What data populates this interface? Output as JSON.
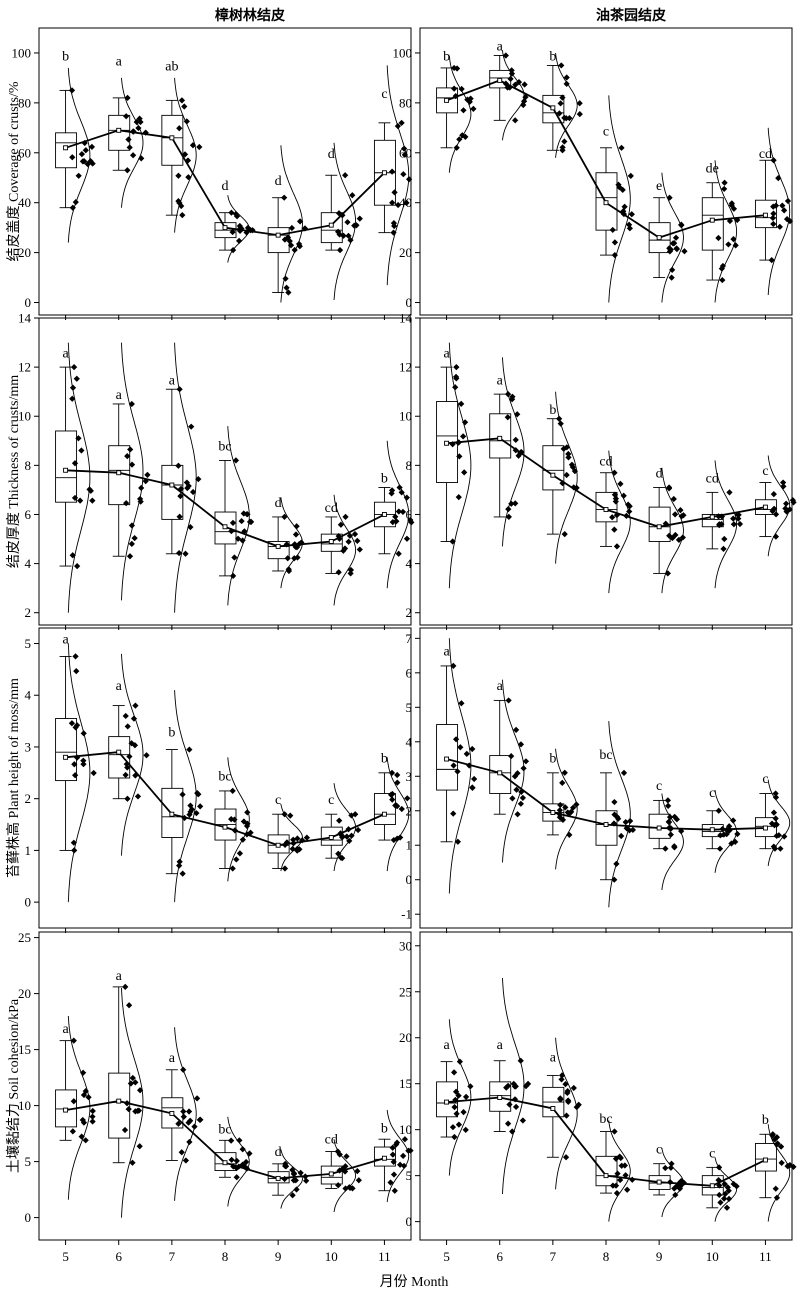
{
  "chart_data": {
    "type": "box",
    "xlabel": "月份 Month",
    "columns": [
      "樟树林结皮",
      "油茶园结皮"
    ],
    "x": [
      5,
      6,
      7,
      8,
      9,
      10,
      11
    ],
    "panels": [
      {
        "id": "coverage-camphor",
        "row": 0,
        "col": 0,
        "ylabel": "结皮盖度 Coverage of crusts/%",
        "ylim": [
          -5,
          110
        ],
        "yticks": [
          0,
          20,
          40,
          60,
          80,
          100
        ],
        "means": [
          62,
          69,
          66,
          30,
          27,
          31,
          52
        ],
        "boxes": [
          {
            "lo": 38,
            "q1": 54,
            "med": 64,
            "q3": 68,
            "hi": 85
          },
          {
            "lo": 53,
            "q1": 61,
            "med": 69,
            "q3": 75,
            "hi": 82
          },
          {
            "lo": 35,
            "q1": 55,
            "med": 66,
            "q3": 75,
            "hi": 81
          },
          {
            "lo": 21,
            "q1": 26,
            "med": 29,
            "q3": 32,
            "hi": 36
          },
          {
            "lo": 4,
            "q1": 20,
            "med": 27,
            "q3": 30,
            "hi": 42
          },
          {
            "lo": 21,
            "q1": 24,
            "med": 29,
            "q3": 36,
            "hi": 51
          },
          {
            "lo": 28,
            "q1": 39,
            "med": 52,
            "q3": 65,
            "hi": 72
          }
        ],
        "letters": [
          "b",
          "a",
          "ab",
          "d",
          "d",
          "d",
          "c"
        ],
        "letter_y": [
          97,
          95,
          93,
          45,
          47,
          58,
          82
        ],
        "curve_range": [
          [
            24,
            94
          ],
          [
            38,
            90
          ],
          [
            28,
            90
          ],
          [
            16,
            43
          ],
          [
            0,
            63
          ],
          [
            1,
            64
          ],
          [
            7,
            95
          ]
        ]
      },
      {
        "id": "coverage-camellia",
        "row": 0,
        "col": 1,
        "ylabel": "",
        "ylim": [
          -5,
          110
        ],
        "yticks": [
          0,
          20,
          40,
          60,
          80,
          100
        ],
        "means": [
          81,
          89,
          78,
          40,
          26,
          33,
          35
        ],
        "boxes": [
          {
            "lo": 62,
            "q1": 76,
            "med": 82,
            "q3": 86,
            "hi": 94
          },
          {
            "lo": 73,
            "q1": 86,
            "med": 90,
            "q3": 93,
            "hi": 99
          },
          {
            "lo": 61,
            "q1": 72,
            "med": 76,
            "q3": 83,
            "hi": 95
          },
          {
            "lo": 19,
            "q1": 29,
            "med": 42,
            "q3": 52,
            "hi": 62
          },
          {
            "lo": 10,
            "q1": 20,
            "med": 25,
            "q3": 32,
            "hi": 42
          },
          {
            "lo": 9,
            "q1": 21,
            "med": 35,
            "q3": 42,
            "hi": 48
          },
          {
            "lo": 17,
            "q1": 30,
            "med": 34,
            "q3": 41,
            "hi": 57
          }
        ],
        "letters": [
          "b",
          "a",
          "b",
          "c",
          "e",
          "de",
          "cd"
        ],
        "letter_y": [
          97,
          101,
          97,
          67,
          45,
          52,
          58
        ],
        "curve_range": [
          [
            52,
            99
          ],
          [
            65,
            101
          ],
          [
            58,
            100
          ],
          [
            0,
            83
          ],
          [
            0,
            52
          ],
          [
            0,
            57
          ],
          [
            3,
            70
          ]
        ]
      },
      {
        "id": "thickness-camphor",
        "row": 1,
        "col": 0,
        "ylabel": "结皮厚度 Thickness of crusts/mm",
        "ylim": [
          1.5,
          14
        ],
        "yticks": [
          2,
          4,
          6,
          8,
          10,
          12,
          14
        ],
        "means": [
          7.8,
          7.7,
          7.2,
          5.5,
          4.7,
          4.9,
          6.0
        ],
        "boxes": [
          {
            "lo": 3.9,
            "q1": 6.5,
            "med": 7.5,
            "q3": 9.4,
            "hi": 12.0
          },
          {
            "lo": 4.3,
            "q1": 6.4,
            "med": 7.8,
            "q3": 8.8,
            "hi": 10.5
          },
          {
            "lo": 4.4,
            "q1": 5.8,
            "med": 7.2,
            "q3": 8.0,
            "hi": 11.1
          },
          {
            "lo": 3.5,
            "q1": 4.8,
            "med": 5.3,
            "q3": 6.1,
            "hi": 8.2
          },
          {
            "lo": 3.7,
            "q1": 4.2,
            "med": 4.7,
            "q3": 4.9,
            "hi": 5.9
          },
          {
            "lo": 3.6,
            "q1": 4.5,
            "med": 4.8,
            "q3": 5.2,
            "hi": 5.9
          },
          {
            "lo": 4.4,
            "q1": 5.5,
            "med": 6.0,
            "q3": 6.5,
            "hi": 7.1
          }
        ],
        "letters": [
          "a",
          "a",
          "a",
          "bc",
          "d",
          "cd",
          "b"
        ],
        "letter_y": [
          12.4,
          10.7,
          11.3,
          8.6,
          6.3,
          6.1,
          7.3
        ],
        "curve_range": [
          [
            2.0,
            13.0
          ],
          [
            2.5,
            13.0
          ],
          [
            2.0,
            13.0
          ],
          [
            2.3,
            9.6
          ],
          [
            3.0,
            6.7
          ],
          [
            2.3,
            6.8
          ],
          [
            3.0,
            9.0
          ]
        ]
      },
      {
        "id": "thickness-camellia",
        "row": 1,
        "col": 1,
        "ylabel": "",
        "ylim": [
          1.5,
          14
        ],
        "yticks": [
          2,
          4,
          6,
          8,
          10,
          12,
          14
        ],
        "means": [
          8.9,
          9.1,
          7.6,
          6.2,
          5.5,
          5.9,
          6.3
        ],
        "boxes": [
          {
            "lo": 4.9,
            "q1": 7.3,
            "med": 9.2,
            "q3": 10.6,
            "hi": 12.0
          },
          {
            "lo": 5.9,
            "q1": 8.3,
            "med": 9.0,
            "q3": 10.1,
            "hi": 10.9
          },
          {
            "lo": 5.2,
            "q1": 7.0,
            "med": 7.8,
            "q3": 8.8,
            "hi": 9.9
          },
          {
            "lo": 4.7,
            "q1": 5.7,
            "med": 6.2,
            "q3": 6.9,
            "hi": 7.7
          },
          {
            "lo": 3.6,
            "q1": 4.9,
            "med": 5.5,
            "q3": 6.3,
            "hi": 7.1
          },
          {
            "lo": 4.6,
            "q1": 5.5,
            "med": 5.8,
            "q3": 6.0,
            "hi": 6.9
          },
          {
            "lo": 5.1,
            "q1": 6.0,
            "med": 6.2,
            "q3": 6.6,
            "hi": 7.3
          }
        ],
        "letters": [
          "a",
          "a",
          "b",
          "cd",
          "d",
          "cd",
          "c"
        ],
        "letter_y": [
          12.4,
          11.3,
          10.1,
          8.0,
          7.5,
          7.3,
          7.6
        ],
        "curve_range": [
          [
            3.0,
            13.0
          ],
          [
            4.7,
            12.4
          ],
          [
            4.0,
            11.0
          ],
          [
            2.8,
            8.6
          ],
          [
            2.8,
            7.9
          ],
          [
            3.0,
            8.2
          ],
          [
            4.3,
            8.4
          ]
        ]
      },
      {
        "id": "moss-camphor",
        "row": 2,
        "col": 0,
        "ylabel": "苔藓株高 Plant height of moss/mm",
        "ylim": [
          -0.5,
          5.3
        ],
        "yticks": [
          0,
          1,
          2,
          3,
          4,
          5
        ],
        "means": [
          2.8,
          2.9,
          1.7,
          1.45,
          1.1,
          1.25,
          1.7
        ],
        "boxes": [
          {
            "lo": 1.0,
            "q1": 2.35,
            "med": 2.9,
            "q3": 3.55,
            "hi": 4.75
          },
          {
            "lo": 2.0,
            "q1": 2.4,
            "med": 2.85,
            "q3": 3.2,
            "hi": 3.8
          },
          {
            "lo": 0.55,
            "q1": 1.25,
            "med": 1.65,
            "q3": 2.2,
            "hi": 2.95
          },
          {
            "lo": 0.65,
            "q1": 1.2,
            "med": 1.5,
            "q3": 1.8,
            "hi": 2.15
          },
          {
            "lo": 0.65,
            "q1": 0.95,
            "med": 1.1,
            "q3": 1.3,
            "hi": 1.7
          },
          {
            "lo": 0.85,
            "q1": 1.1,
            "med": 1.2,
            "q3": 1.45,
            "hi": 1.7
          },
          {
            "lo": 1.2,
            "q1": 1.5,
            "med": 1.7,
            "q3": 2.1,
            "hi": 2.5
          }
        ],
        "letters": [
          "a",
          "a",
          "b",
          "bc",
          "c",
          "c",
          "b"
        ],
        "letter_y": [
          5.0,
          4.1,
          3.2,
          2.35,
          1.9,
          1.9,
          2.7
        ],
        "curve_range": [
          [
            0.0,
            5.0
          ],
          [
            0.9,
            4.8
          ],
          [
            0.0,
            4.1
          ],
          [
            0.4,
            2.8
          ],
          [
            0.6,
            1.9
          ],
          [
            0.6,
            2.3
          ],
          [
            0.6,
            2.8
          ]
        ]
      },
      {
        "id": "moss-camellia",
        "row": 2,
        "col": 1,
        "ylabel": "",
        "ylim": [
          -1.4,
          7.3
        ],
        "yticks": [
          -1,
          0,
          1,
          2,
          3,
          4,
          5,
          6,
          7
        ],
        "means": [
          3.5,
          3.1,
          1.95,
          1.6,
          1.5,
          1.45,
          1.5
        ],
        "boxes": [
          {
            "lo": 1.1,
            "q1": 2.6,
            "med": 3.2,
            "q3": 4.5,
            "hi": 6.2
          },
          {
            "lo": 1.9,
            "q1": 2.5,
            "med": 3.1,
            "q3": 3.6,
            "hi": 5.2
          },
          {
            "lo": 1.3,
            "q1": 1.7,
            "med": 1.95,
            "q3": 2.2,
            "hi": 3.1
          },
          {
            "lo": 0.0,
            "q1": 1.0,
            "med": 1.6,
            "q3": 2.0,
            "hi": 3.1
          },
          {
            "lo": 0.9,
            "q1": 1.2,
            "med": 1.5,
            "q3": 1.9,
            "hi": 2.3
          },
          {
            "lo": 0.9,
            "q1": 1.25,
            "med": 1.4,
            "q3": 1.6,
            "hi": 2.0
          },
          {
            "lo": 0.9,
            "q1": 1.25,
            "med": 1.55,
            "q3": 1.8,
            "hi": 2.5
          }
        ],
        "letters": [
          "a",
          "a",
          "b",
          "bc",
          "c",
          "c",
          "c"
        ],
        "letter_y": [
          6.5,
          5.5,
          3.4,
          3.5,
          2.6,
          2.4,
          2.8
        ],
        "curve_range": [
          [
            -0.4,
            7.0
          ],
          [
            0.5,
            5.8
          ],
          [
            0.3,
            3.8
          ],
          [
            -0.8,
            4.6
          ],
          [
            -0.3,
            2.5
          ],
          [
            0.2,
            2.6
          ],
          [
            0.4,
            2.9
          ]
        ]
      },
      {
        "id": "cohesion-camphor",
        "row": 3,
        "col": 0,
        "ylabel": "土壤黏结力 Soil cohesion/kPa",
        "ylim": [
          -2,
          25.5
        ],
        "yticks": [
          0,
          5,
          10,
          15,
          20,
          25
        ],
        "means": [
          9.6,
          10.4,
          9.3,
          4.9,
          3.5,
          3.9,
          5.3
        ],
        "boxes": [
          {
            "lo": 6.9,
            "q1": 8.1,
            "med": 9.7,
            "q3": 11.4,
            "hi": 15.8
          },
          {
            "lo": 4.9,
            "q1": 7.1,
            "med": 10.3,
            "q3": 12.9,
            "hi": 20.6
          },
          {
            "lo": 5.1,
            "q1": 8.0,
            "med": 9.8,
            "q3": 10.7,
            "hi": 13.2
          },
          {
            "lo": 3.6,
            "q1": 4.2,
            "med": 4.8,
            "q3": 5.8,
            "hi": 6.9
          },
          {
            "lo": 2.0,
            "q1": 3.1,
            "med": 3.5,
            "q3": 4.1,
            "hi": 4.8
          },
          {
            "lo": 2.6,
            "q1": 3.0,
            "med": 3.6,
            "q3": 4.6,
            "hi": 5.9
          },
          {
            "lo": 2.4,
            "q1": 4.6,
            "med": 5.2,
            "q3": 6.3,
            "hi": 7.0
          }
        ],
        "letters": [
          "a",
          "a",
          "a",
          "bc",
          "d",
          "cd",
          "b"
        ],
        "letter_y": [
          16.5,
          21.2,
          13.9,
          7.5,
          5.5,
          6.6,
          7.6
        ],
        "curve_range": [
          [
            1.6,
            18.0
          ],
          [
            0.0,
            20.5
          ],
          [
            1.5,
            17.0
          ],
          [
            1.0,
            9.0
          ],
          [
            0.8,
            6.1
          ],
          [
            0.5,
            7.0
          ],
          [
            1.4,
            9.6
          ]
        ]
      },
      {
        "id": "cohesion-camellia",
        "row": 3,
        "col": 1,
        "ylabel": "",
        "ylim": [
          -2,
          31.5
        ],
        "yticks": [
          0,
          5,
          10,
          15,
          20,
          25,
          30
        ],
        "means": [
          13.0,
          13.5,
          12.3,
          5.0,
          4.3,
          3.9,
          6.7
        ],
        "boxes": [
          {
            "lo": 9.2,
            "q1": 11.4,
            "med": 12.9,
            "q3": 15.2,
            "hi": 17.4
          },
          {
            "lo": 9.8,
            "q1": 12.0,
            "med": 13.7,
            "q3": 15.2,
            "hi": 17.5
          },
          {
            "lo": 7.0,
            "q1": 11.4,
            "med": 13.0,
            "q3": 14.6,
            "hi": 15.9
          },
          {
            "lo": 3.1,
            "q1": 3.9,
            "med": 5.0,
            "q3": 7.1,
            "hi": 9.8
          },
          {
            "lo": 2.9,
            "q1": 3.5,
            "med": 4.2,
            "q3": 5.0,
            "hi": 6.3
          },
          {
            "lo": 1.5,
            "q1": 2.9,
            "med": 3.7,
            "q3": 5.0,
            "hi": 5.9
          },
          {
            "lo": 2.6,
            "q1": 5.5,
            "med": 6.8,
            "q3": 8.5,
            "hi": 9.5
          }
        ],
        "letters": [
          "a",
          "a",
          "a",
          "bc",
          "c",
          "c",
          "b"
        ],
        "letter_y": [
          18.8,
          18.8,
          17.4,
          10.7,
          7.4,
          7.0,
          10.6
        ],
        "curve_range": [
          [
            5.0,
            22.0
          ],
          [
            3.0,
            26.5
          ],
          [
            3.5,
            20.0
          ],
          [
            0.0,
            11.0
          ],
          [
            0.5,
            8.0
          ],
          [
            0.0,
            7.0
          ],
          [
            0.0,
            10.6
          ]
        ]
      }
    ]
  }
}
